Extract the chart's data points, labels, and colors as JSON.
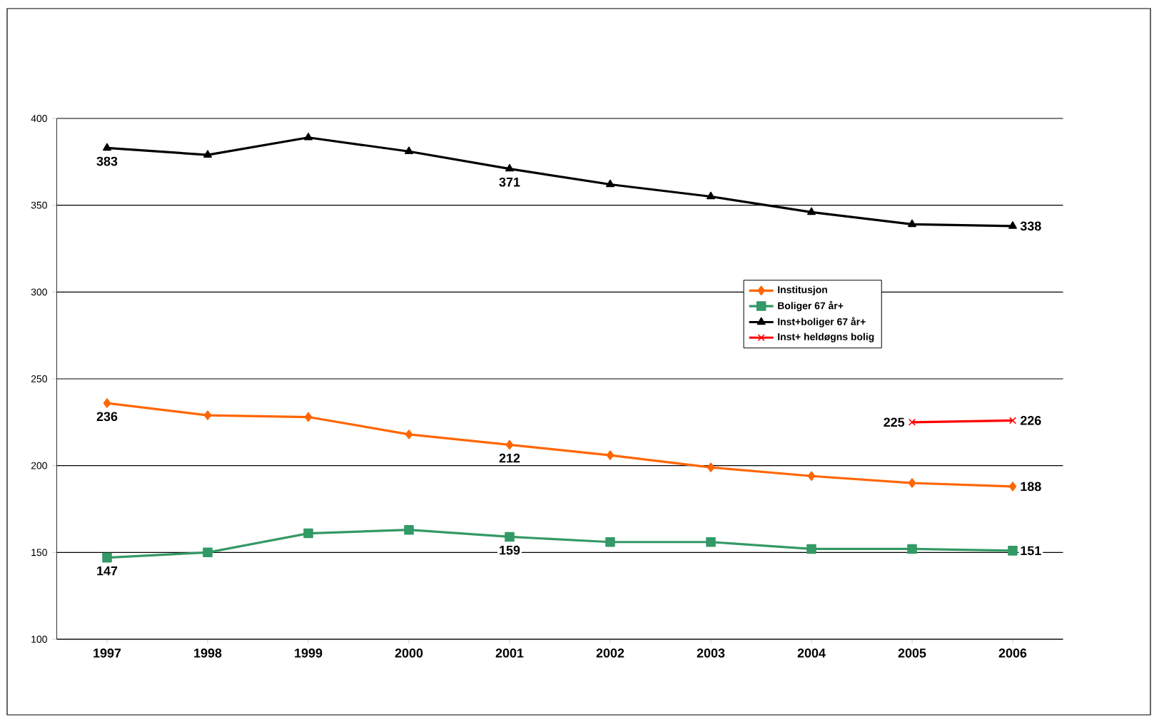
{
  "chart_data": {
    "type": "line",
    "categories": [
      "1997",
      "1998",
      "1999",
      "2000",
      "2001",
      "2002",
      "2003",
      "2004",
      "2005",
      "2006"
    ],
    "series": [
      {
        "name": "Institusjon",
        "color": "#ff6600",
        "marker": "diamond",
        "values": [
          236,
          229,
          228,
          218,
          212,
          206,
          199,
          194,
          190,
          188
        ],
        "value_labels": [
          "236",
          null,
          null,
          null,
          "212",
          null,
          null,
          null,
          null,
          "188"
        ]
      },
      {
        "name": "Boliger 67 år+",
        "color": "#339966",
        "marker": "square",
        "values": [
          147,
          150,
          161,
          163,
          159,
          156,
          156,
          152,
          152,
          151
        ],
        "value_labels": [
          "147",
          null,
          null,
          null,
          "159",
          null,
          null,
          null,
          null,
          "151"
        ]
      },
      {
        "name": "Inst+boliger 67 år+",
        "color": "#000000",
        "marker": "triangle",
        "values": [
          383,
          379,
          389,
          381,
          371,
          362,
          355,
          346,
          339,
          338
        ],
        "value_labels": [
          "383",
          null,
          null,
          null,
          "371",
          null,
          null,
          null,
          null,
          "338"
        ]
      },
      {
        "name": "Inst+ heldøgns bolig",
        "color": "#ff0000",
        "marker": "cross",
        "values": [
          null,
          null,
          null,
          null,
          null,
          null,
          null,
          null,
          225,
          226
        ],
        "value_labels": [
          null,
          null,
          null,
          null,
          null,
          null,
          null,
          null,
          "225",
          "226"
        ]
      }
    ],
    "ylim": [
      100,
      400
    ],
    "yticks": [
      100,
      150,
      200,
      250,
      300,
      350,
      400
    ],
    "grid": "y",
    "legend": "right"
  }
}
